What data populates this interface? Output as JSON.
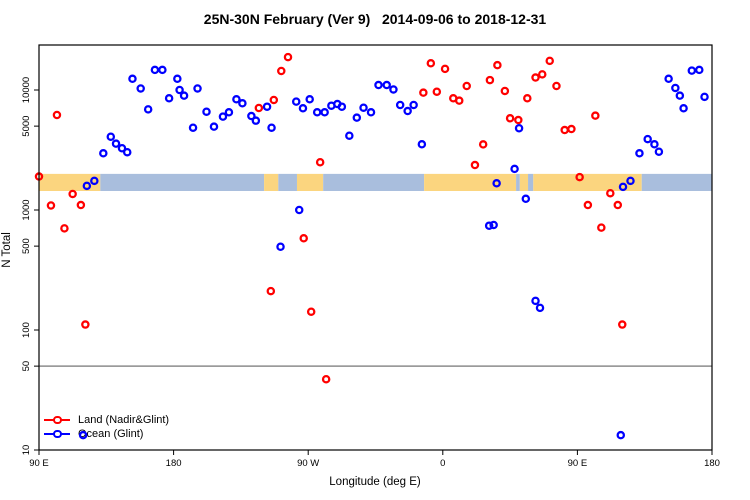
{
  "title": "25N-30N February (Ver 9)   2014-09-06 to 2018-12-31",
  "chart_data": {
    "type": "scatter",
    "title": "25N-30N February (Ver 9)   2014-09-06 to 2018-12-31",
    "xlabel": "Longitude (deg E)",
    "ylabel": "N Total",
    "x_axis": {
      "note": "longitude axis wraps eastward from 90E around the globe to 180 (450 deg span); t is axis position in deg",
      "ticks": [
        {
          "label": "90 E",
          "t": 90
        },
        {
          "label": "180",
          "t": 180
        },
        {
          "label": "90 W",
          "t": 270
        },
        {
          "label": "0",
          "t": 360
        },
        {
          "label": "90 E",
          "t": 450
        },
        {
          "label": "180",
          "t": 540
        }
      ],
      "range": [
        90,
        540
      ]
    },
    "y_axis": {
      "scale": "log10",
      "ticks": [
        10,
        50,
        100,
        500,
        1000,
        5000,
        10000
      ],
      "range": [
        10,
        23700
      ]
    },
    "grid": false,
    "reference_line": {
      "y": 50,
      "color": "#8c8c8c"
    },
    "map_band": {
      "description": "land/ocean strip for 25N-30N drawn across the plot",
      "value_range": [
        1440,
        2000
      ],
      "land_color": "#FBD57F",
      "ocean_color": "#A9BEDD",
      "segments": [
        {
          "type": "land",
          "from": 90,
          "to": 131
        },
        {
          "type": "ocean",
          "from": 131,
          "to": 240.5
        },
        {
          "type": "land",
          "from": 240.5,
          "to": 250
        },
        {
          "type": "ocean",
          "from": 250,
          "to": 262.5
        },
        {
          "type": "land",
          "from": 262.5,
          "to": 280
        },
        {
          "type": "ocean",
          "from": 280,
          "to": 347.5
        },
        {
          "type": "land",
          "from": 347.5,
          "to": 409
        },
        {
          "type": "ocean",
          "from": 409,
          "to": 411.5
        },
        {
          "type": "land",
          "from": 411.5,
          "to": 417
        },
        {
          "type": "ocean",
          "from": 417,
          "to": 420.5
        },
        {
          "type": "land",
          "from": 420.5,
          "to": 493
        },
        {
          "type": "ocean",
          "from": 493,
          "to": 540
        }
      ]
    },
    "legend": {
      "position": "bottom-left",
      "items": [
        {
          "label": "Land (Nadir&Glint)",
          "color": "#FF0000"
        },
        {
          "label": "Ocean (Glint)",
          "color": "#0000FF"
        }
      ]
    },
    "series": [
      {
        "name": "Land (Nadir&Glint)",
        "color": "#FF0000",
        "points": [
          [
            102,
            6190
          ],
          [
            90,
            1900
          ],
          [
            112.5,
            1360
          ],
          [
            98,
            1090
          ],
          [
            118,
            1100
          ],
          [
            107,
            703
          ],
          [
            121,
            111
          ],
          [
            256.5,
            18800
          ],
          [
            252,
            14400
          ],
          [
            247,
            8260
          ],
          [
            237,
            7080
          ],
          [
            278,
            2500
          ],
          [
            267,
            581
          ],
          [
            245,
            211
          ],
          [
            272,
            142
          ],
          [
            282,
            38.9
          ],
          [
            352,
            16700
          ],
          [
            361.5,
            15000
          ],
          [
            347,
            9500
          ],
          [
            356,
            9680
          ],
          [
            367,
            8530
          ],
          [
            371,
            8150
          ],
          [
            376,
            10800
          ],
          [
            387,
            3520
          ],
          [
            381.5,
            2370
          ],
          [
            391.5,
            12100
          ],
          [
            396.5,
            16100
          ],
          [
            401.5,
            9820
          ],
          [
            405,
            5810
          ],
          [
            410.5,
            5620
          ],
          [
            416.5,
            8530
          ],
          [
            422,
            12700
          ],
          [
            426.5,
            13500
          ],
          [
            431.5,
            17500
          ],
          [
            436,
            10800
          ],
          [
            441.5,
            4640
          ],
          [
            446,
            4730
          ],
          [
            451.5,
            1880
          ],
          [
            457,
            1100
          ],
          [
            462,
            6110
          ],
          [
            466,
            713
          ],
          [
            472,
            1380
          ],
          [
            477,
            1100
          ],
          [
            480,
            111
          ]
        ]
      },
      {
        "name": "Ocean (Glint)",
        "color": "#0000FF",
        "points": [
          [
            152.5,
            12400
          ],
          [
            158,
            10300
          ],
          [
            167.5,
            14700
          ],
          [
            172.5,
            14700
          ],
          [
            182.5,
            12400
          ],
          [
            184,
            10000
          ],
          [
            177,
            8530
          ],
          [
            187,
            8970
          ],
          [
            196,
            10300
          ],
          [
            163,
            6900
          ],
          [
            193,
            4850
          ],
          [
            202,
            6590
          ],
          [
            207,
            4950
          ],
          [
            213,
            6000
          ],
          [
            217,
            6520
          ],
          [
            222,
            8370
          ],
          [
            226,
            7750
          ],
          [
            232,
            6070
          ],
          [
            235,
            5550
          ],
          [
            138,
            4080
          ],
          [
            141.5,
            3570
          ],
          [
            145.5,
            3270
          ],
          [
            149,
            3030
          ],
          [
            133,
            2970
          ],
          [
            122,
            1590
          ],
          [
            127,
            1750
          ],
          [
            242.5,
            7260
          ],
          [
            245.5,
            4850
          ],
          [
            262,
            8000
          ],
          [
            266.5,
            7040
          ],
          [
            271,
            8370
          ],
          [
            276,
            6520
          ],
          [
            281,
            6520
          ],
          [
            285.5,
            7400
          ],
          [
            289.5,
            7640
          ],
          [
            292.5,
            7260
          ],
          [
            297.5,
            4160
          ],
          [
            302.5,
            5880
          ],
          [
            307,
            7120
          ],
          [
            312,
            6520
          ],
          [
            317,
            11000
          ],
          [
            322.5,
            11000
          ],
          [
            327,
            10100
          ],
          [
            331.5,
            7500
          ],
          [
            336.5,
            6680
          ],
          [
            340.5,
            7500
          ],
          [
            346,
            3530
          ],
          [
            391,
            740
          ],
          [
            394,
            750
          ],
          [
            396,
            1670
          ],
          [
            408,
            2200
          ],
          [
            411,
            4800
          ],
          [
            415.5,
            1240
          ],
          [
            422,
            175
          ],
          [
            425,
            153
          ],
          [
            251.5,
            494
          ],
          [
            264,
            1000
          ],
          [
            479,
            13.3
          ],
          [
            119.5,
            13.3
          ],
          [
            480.5,
            1560
          ],
          [
            485.5,
            1750
          ],
          [
            491.5,
            2970
          ],
          [
            497,
            3900
          ],
          [
            501.5,
            3530
          ],
          [
            504.5,
            3060
          ],
          [
            511,
            12400
          ],
          [
            515.5,
            10400
          ],
          [
            518.5,
            8970
          ],
          [
            521,
            7040
          ],
          [
            526.5,
            14500
          ],
          [
            531.5,
            14700
          ],
          [
            535,
            8770
          ]
        ]
      }
    ]
  }
}
